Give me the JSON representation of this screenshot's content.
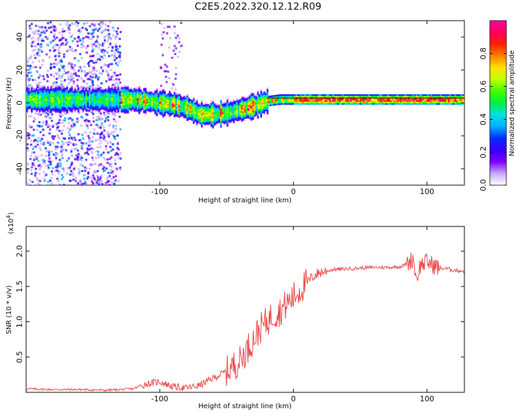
{
  "title": "C2E5.2022.320.12.12.R09",
  "chart_data": [
    {
      "type": "heatmap",
      "title": "C2E5.2022.320.12.12.R09",
      "xlabel": "Height of straight line (km)",
      "ylabel": "Frequency (Hz)",
      "xlim": [
        -200,
        128
      ],
      "ylim": [
        -50,
        50
      ],
      "xticks": [
        -100,
        0,
        100
      ],
      "yticks": [
        -40,
        -20,
        0,
        20,
        40
      ],
      "colorbar": {
        "label": "Normalized spectral amplitude",
        "range": [
          0.0,
          1.0
        ],
        "ticks": [
          "0.0",
          "0.2",
          "0.4",
          "0.6",
          "0.8"
        ],
        "ticks_values": [
          0.0,
          0.2,
          0.4,
          0.6,
          0.8
        ],
        "colors": [
          "#ffffff",
          "#c8a8ff",
          "#7a00ff",
          "#3a00ff",
          "#0030ff",
          "#00b0ff",
          "#00e0e0",
          "#00f040",
          "#40ff00",
          "#c0ff00",
          "#ffe000",
          "#ff8000",
          "#ff2000",
          "#ff0060",
          "#ff00a0"
        ]
      },
      "ridge": {
        "x": [
          -200,
          -180,
          -160,
          -140,
          -120,
          -100,
          -90,
          -80,
          -70,
          -60,
          -50,
          -40,
          -30,
          -20,
          -10,
          0,
          20,
          40,
          60,
          80,
          100,
          110,
          128
        ],
        "y": [
          2,
          2,
          2,
          2,
          2,
          0,
          -1,
          -3,
          -7,
          -7,
          -6,
          -4,
          -2,
          1,
          2,
          2,
          2,
          2,
          2,
          2,
          2,
          2,
          2
        ]
      },
      "scatter_region_km": [
        -200,
        -130
      ]
    },
    {
      "type": "line",
      "xlabel": "Height of straight line (km)",
      "ylabel": "SNR (10 * v/v)",
      "scale_label": "(x10",
      "scale_exponent": "4",
      "xlim": [
        -200,
        128
      ],
      "ylim": [
        0,
        2.35
      ],
      "xticks": [
        -100,
        0,
        100
      ],
      "yticks": [
        "0.5",
        "1.0",
        "1.5",
        "2.0"
      ],
      "yticks_values": [
        0.5,
        1.0,
        1.5,
        2.0
      ],
      "color": "#e84040",
      "x": [
        -200,
        -180,
        -160,
        -140,
        -120,
        -110,
        -100,
        -90,
        -80,
        -70,
        -60,
        -50,
        -40,
        -35,
        -30,
        -25,
        -20,
        -15,
        -10,
        -5,
        0,
        5,
        10,
        15,
        20,
        25,
        30,
        40,
        50,
        60,
        70,
        80,
        85,
        90,
        92,
        95,
        100,
        105,
        110,
        115,
        120,
        128
      ],
      "y": [
        0.05,
        0.04,
        0.04,
        0.03,
        0.05,
        0.12,
        0.15,
        0.08,
        0.06,
        0.1,
        0.2,
        0.3,
        0.45,
        0.6,
        0.75,
        0.9,
        1.0,
        1.1,
        1.15,
        1.25,
        1.35,
        1.45,
        1.55,
        1.65,
        1.7,
        1.72,
        1.74,
        1.75,
        1.76,
        1.77,
        1.77,
        1.78,
        1.82,
        1.9,
        1.6,
        1.8,
        1.85,
        1.8,
        1.76,
        1.75,
        1.73,
        1.72
      ]
    }
  ]
}
